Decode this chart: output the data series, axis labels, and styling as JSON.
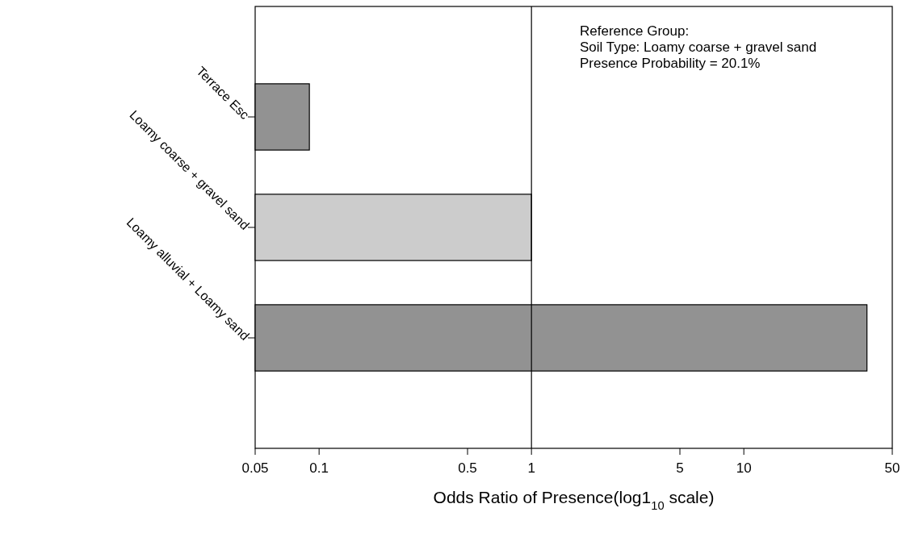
{
  "chart_data": {
    "type": "bar",
    "orientation": "horizontal",
    "categories": [
      "Terrace Esc",
      "Loamy coarse + gravel sand",
      "Loamy alluvial + Loamy sand"
    ],
    "values": [
      0.09,
      1,
      38
    ],
    "colors": [
      "#929292",
      "#cccccc",
      "#929292"
    ],
    "log": "x",
    "xlim": [
      0.05,
      50
    ],
    "xticks": [
      0.05,
      0.1,
      0.5,
      1,
      5,
      10,
      50
    ],
    "xlabel": "Odds Ratio of Presence(log1$_{10}$ scale)",
    "ref_lines": [
      {
        "axis": "x",
        "value": 1,
        "color": "#000000"
      }
    ],
    "annotations": [
      "Reference Group:",
      "Soil Type: Loamy coarse + gravel sand",
      "Presence Probability = 20.1%"
    ],
    "grid": false
  }
}
